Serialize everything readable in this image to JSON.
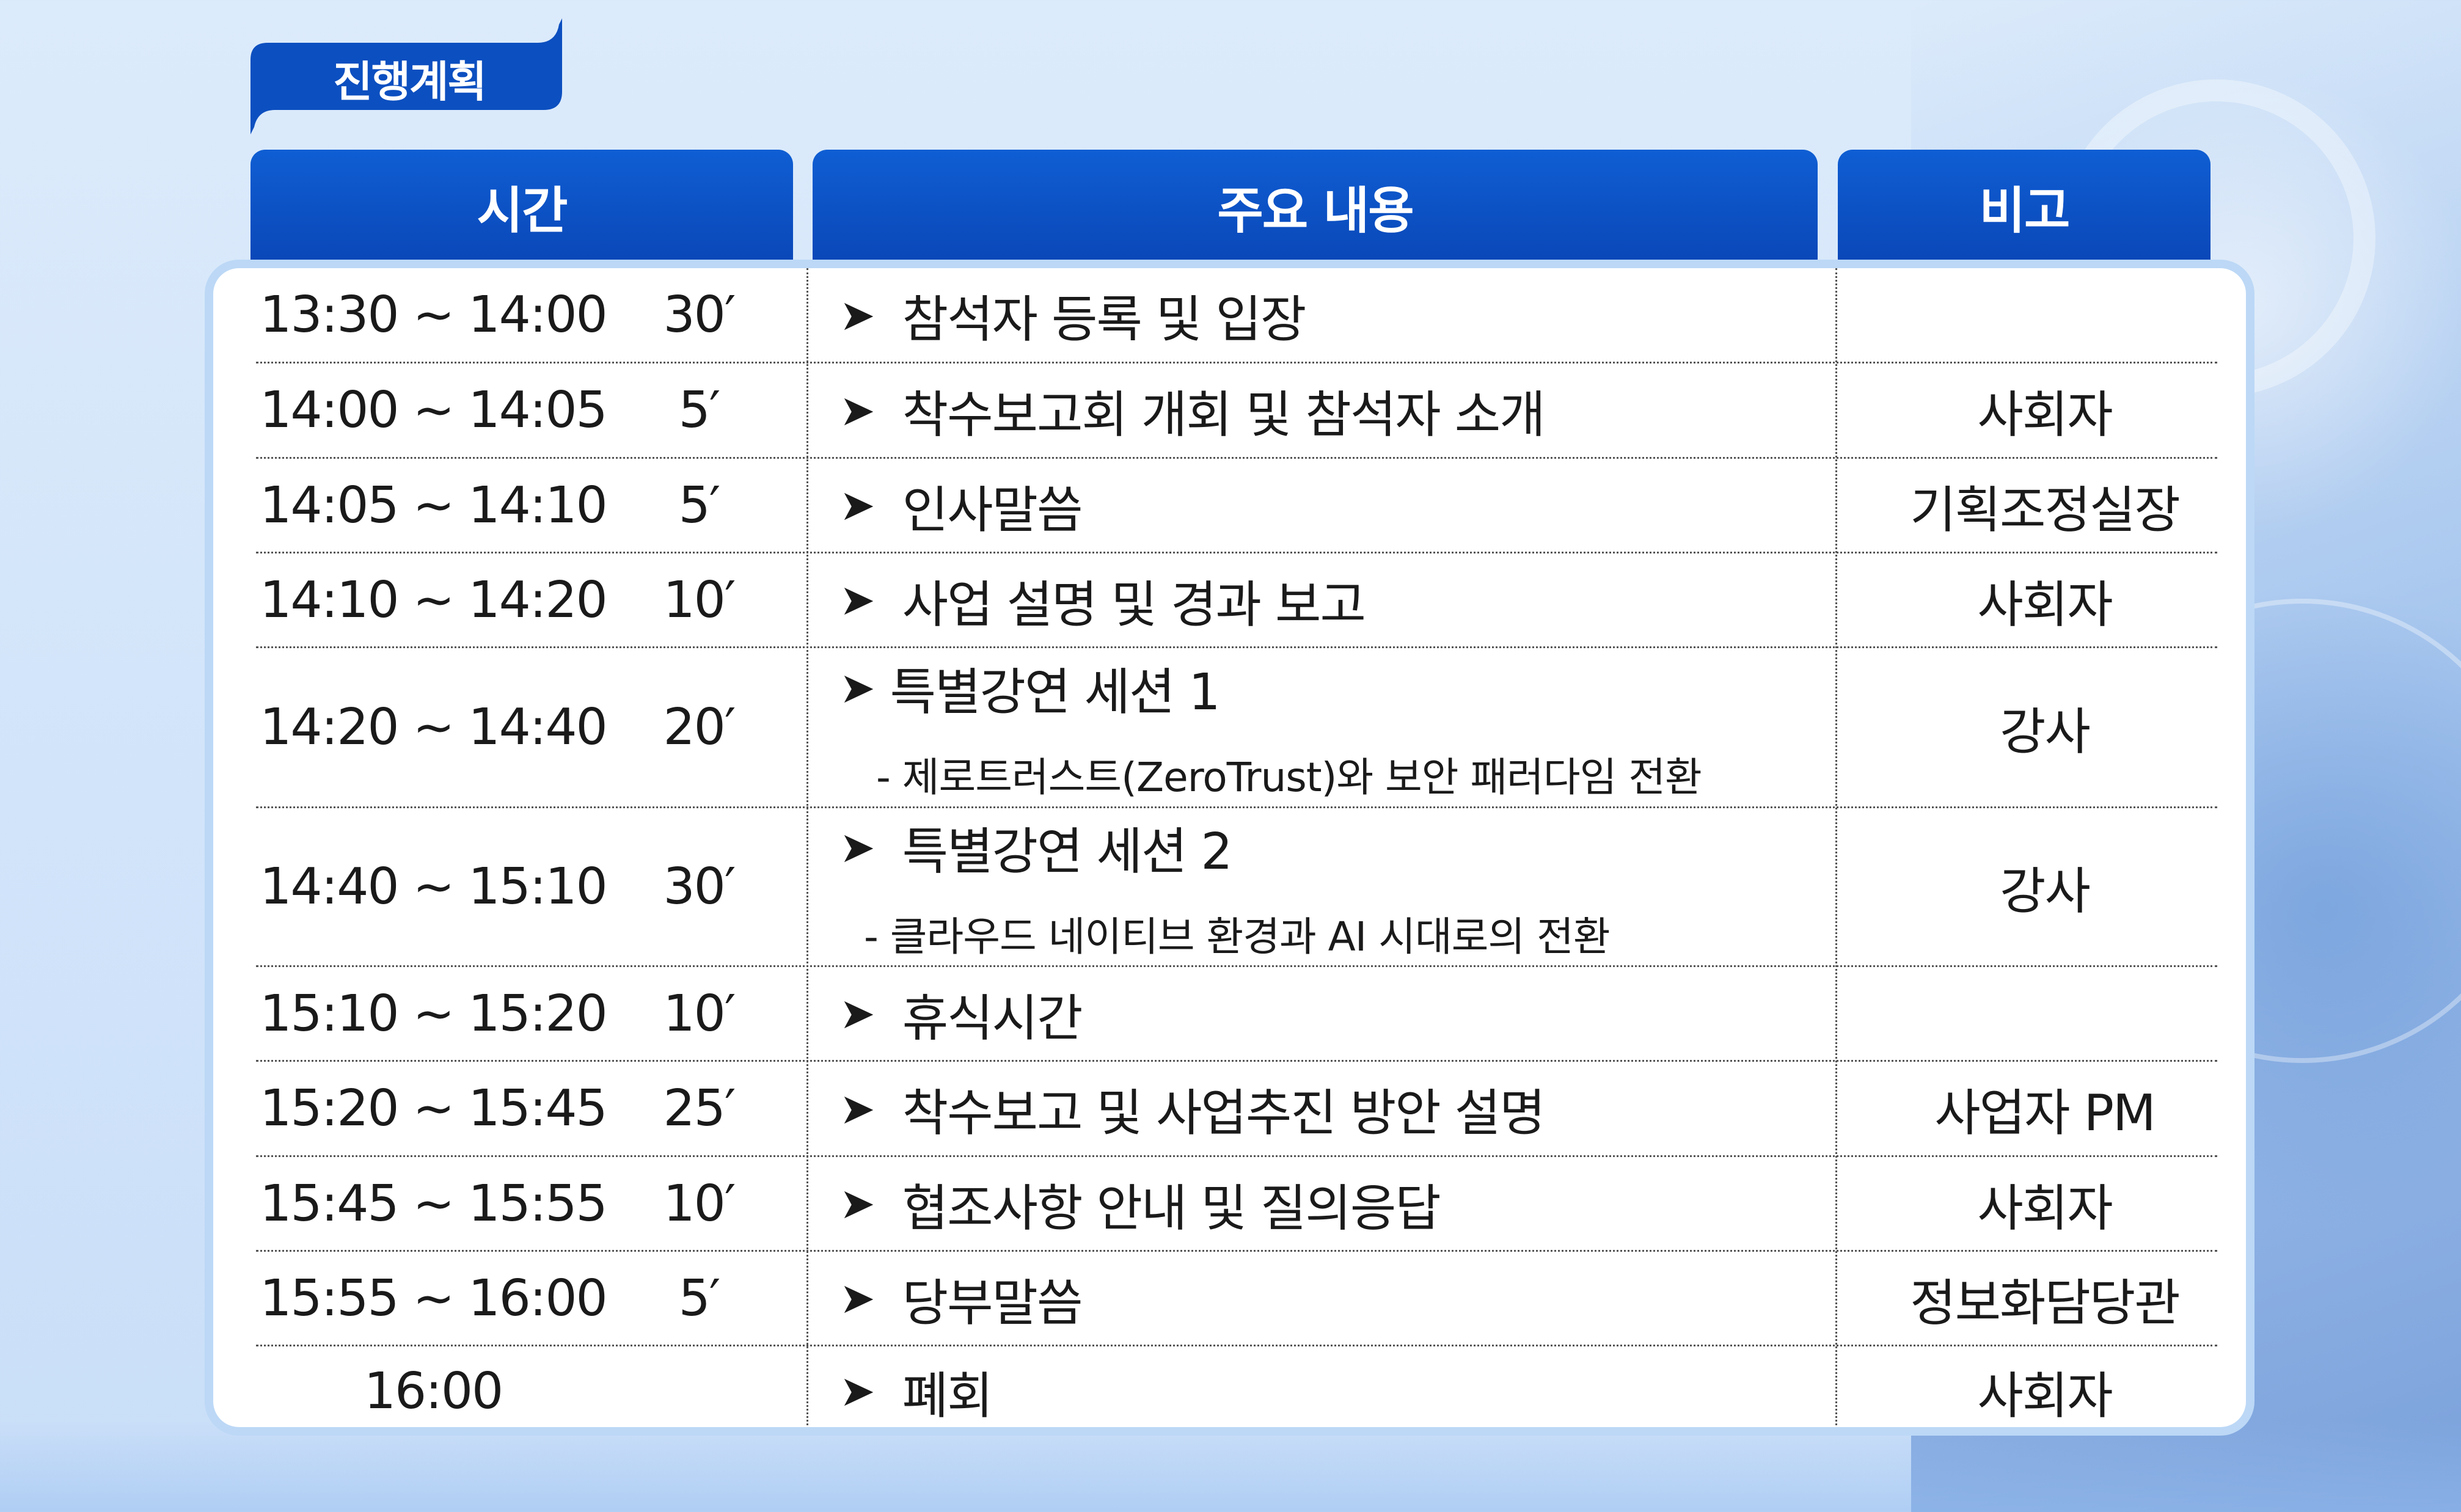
{
  "tag": {
    "label": "진행계획"
  },
  "headers": {
    "time": "시간",
    "content": "주요 내용",
    "note": "비고"
  },
  "rows": [
    {
      "time": "13:30 ~ 14:00",
      "duration": "30′",
      "content": "참석자 등록 및 입장",
      "sub": "",
      "note": ""
    },
    {
      "time": "14:00 ~ 14:05",
      "duration": "5′",
      "content": "착수보고회 개회 및 참석자 소개",
      "sub": "",
      "note": "사회자"
    },
    {
      "time": "14:05 ~ 14:10",
      "duration": "5′",
      "content": "인사말씀",
      "sub": "",
      "note": "기획조정실장"
    },
    {
      "time": "14:10 ~ 14:20",
      "duration": "10′",
      "content": "사업 설명 및 경과 보고",
      "sub": "",
      "note": "사회자"
    },
    {
      "time": "14:20 ~ 14:40",
      "duration": "20′",
      "content": "특별강연 세션 1",
      "sub": "- 제로트러스트(ZeroTrust)와 보안 패러다임 전환",
      "note": "강사"
    },
    {
      "time": "14:40 ~ 15:10",
      "duration": "30′",
      "content": "특별강연 세션 2",
      "sub": "- 클라우드 네이티브 환경과 AI 시대로의 전환",
      "note": "강사"
    },
    {
      "time": "15:10 ~ 15:20",
      "duration": "10′",
      "content": "휴식시간",
      "sub": "",
      "note": ""
    },
    {
      "time": "15:20 ~ 15:45",
      "duration": "25′",
      "content": "착수보고 및 사업추진 방안 설명",
      "sub": "",
      "note": "사업자 PM"
    },
    {
      "time": "15:45 ~ 15:55",
      "duration": "10′",
      "content": "협조사항 안내 및 질의응답",
      "sub": "",
      "note": "사회자"
    },
    {
      "time": "15:55 ~ 16:00",
      "duration": "5′",
      "content": "당부말씀",
      "sub": "",
      "note": "정보화담당관"
    },
    {
      "time": "16:00",
      "duration": "",
      "content": "폐회",
      "sub": "",
      "note": "사회자"
    }
  ],
  "icons": {
    "bullet": "arrowhead-icon"
  }
}
